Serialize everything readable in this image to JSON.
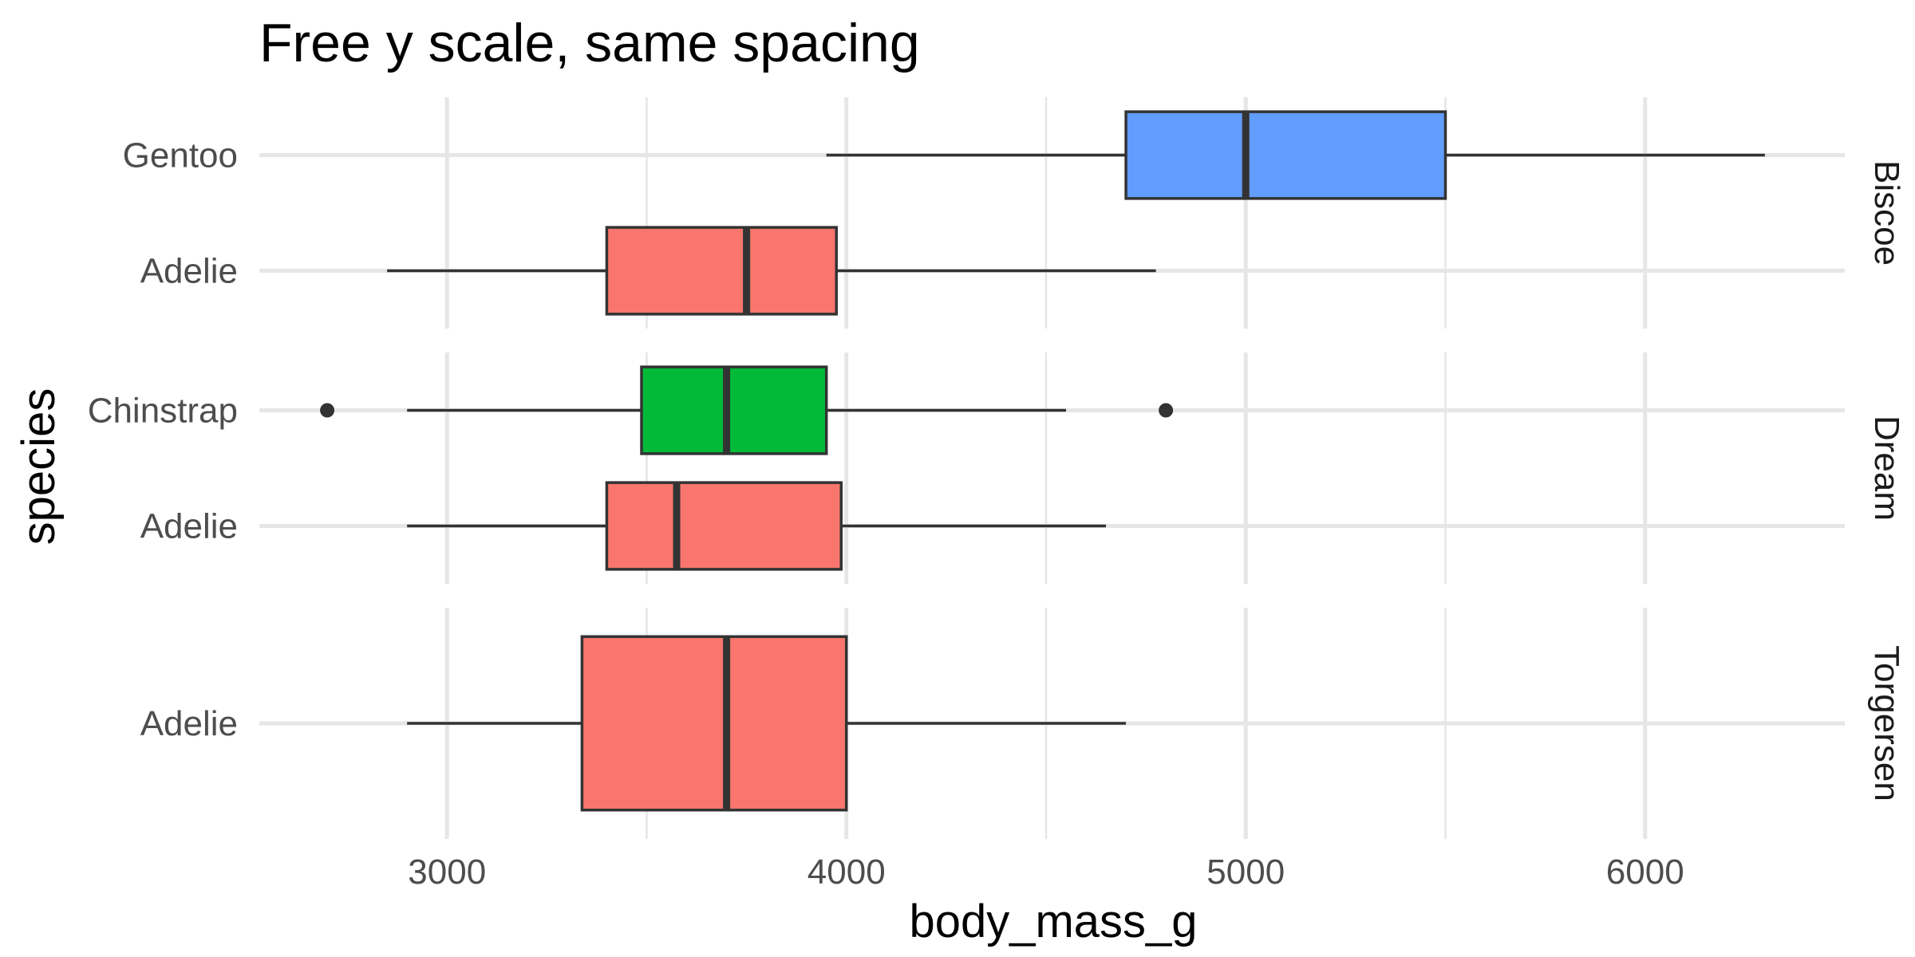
{
  "chart_data": {
    "type": "boxplot",
    "title": "Free y scale, same spacing",
    "xlabel": "body_mass_g",
    "ylabel": "species",
    "xlim": [
      2530,
      6500
    ],
    "x_ticks": [
      3000,
      4000,
      5000,
      6000
    ],
    "x_minor_ticks": [
      3500,
      4500,
      5500
    ],
    "orientation": "horizontal",
    "grid": true,
    "legend": "none",
    "facet_by": "island",
    "panels": [
      {
        "facet": "Biscoe",
        "species": [
          "Adelie",
          "Gentoo"
        ],
        "boxes": [
          {
            "species": "Adelie",
            "whisker_low": 2850,
            "q1": 3400,
            "median": 3750,
            "q3": 3975,
            "whisker_high": 4775,
            "outliers": [],
            "fill": "#F8766D"
          },
          {
            "species": "Gentoo",
            "whisker_low": 3950,
            "q1": 4700,
            "median": 5000,
            "q3": 5500,
            "whisker_high": 6300,
            "outliers": [],
            "fill": "#619CFF"
          }
        ]
      },
      {
        "facet": "Dream",
        "species": [
          "Adelie",
          "Chinstrap"
        ],
        "boxes": [
          {
            "species": "Adelie",
            "whisker_low": 2900,
            "q1": 3400,
            "median": 3575,
            "q3": 3987,
            "whisker_high": 4650,
            "outliers": [],
            "fill": "#F8766D"
          },
          {
            "species": "Chinstrap",
            "whisker_low": 2900,
            "q1": 3487,
            "median": 3700,
            "q3": 3950,
            "whisker_high": 4550,
            "outliers": [
              2700,
              4800
            ],
            "fill": "#00BA38"
          }
        ]
      },
      {
        "facet": "Torgersen",
        "species": [
          "Adelie"
        ],
        "boxes": [
          {
            "species": "Adelie",
            "whisker_low": 2900,
            "q1": 3338,
            "median": 3700,
            "q3": 4000,
            "whisker_high": 4700,
            "outliers": [],
            "fill": "#F8766D"
          }
        ]
      }
    ]
  }
}
